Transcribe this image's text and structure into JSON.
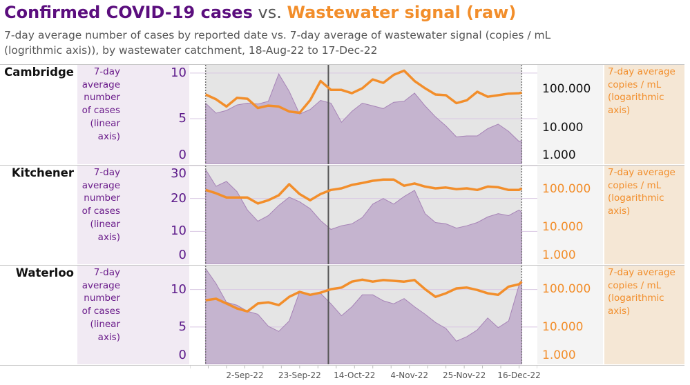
{
  "header": {
    "title_cases": "Confirmed COVID-19 cases",
    "title_vs": " vs. ",
    "title_wastewater": "Wastewater signal (raw)",
    "subtitle": "7-day average number of cases by reported date vs. 7-day average of wastewater signal (copies / mL (logrithmic axis)), by wastewater catchment, 18-Aug-22 to 17-Dec-22"
  },
  "colors": {
    "cases_fill": "#c5b4cf",
    "cases_line": "#a683b6",
    "wastewater": "#f28e2b",
    "cases_text": "#5b0e7e"
  },
  "left_axis_label": "7-day average number of cases (linear axis)",
  "right_axis_label": "7-day average copies / mL (logarithmic axis)",
  "x_axis": {
    "tick_labels": [
      "2-Sep-22",
      "23-Sep-22",
      "14-Oct-22",
      "4-Nov-22",
      "25-Nov-22",
      "16-Dec-22"
    ],
    "range": [
      "12-Aug-22",
      "23-Dec-22"
    ],
    "data_window": [
      "18-Aug-22",
      "17-Dec-22"
    ],
    "reference_line": "4-Oct-22"
  },
  "chart_data": [
    {
      "type": "area+line",
      "panel": "Cambridge",
      "x": [
        "18-Aug-22",
        "22-Aug-22",
        "26-Aug-22",
        "30-Aug-22",
        "3-Sep-22",
        "7-Sep-22",
        "11-Sep-22",
        "15-Sep-22",
        "19-Sep-22",
        "23-Sep-22",
        "27-Sep-22",
        "1-Oct-22",
        "5-Oct-22",
        "9-Oct-22",
        "13-Oct-22",
        "17-Oct-22",
        "21-Oct-22",
        "25-Oct-22",
        "29-Oct-22",
        "2-Nov-22",
        "6-Nov-22",
        "10-Nov-22",
        "14-Nov-22",
        "18-Nov-22",
        "22-Nov-22",
        "26-Nov-22",
        "30-Nov-22",
        "4-Dec-22",
        "8-Dec-22",
        "12-Dec-22",
        "16-Dec-22",
        "17-Dec-22"
      ],
      "cases": [
        6.7,
        5.6,
        5.9,
        6.5,
        6.7,
        6.6,
        6.9,
        9.9,
        8.0,
        5.5,
        6.0,
        7.0,
        6.7,
        4.6,
        5.8,
        6.7,
        6.4,
        6.1,
        6.8,
        6.9,
        7.8,
        6.4,
        5.2,
        4.2,
        3.0,
        3.1,
        3.1,
        3.9,
        4.4,
        3.6,
        2.5,
        2.6
      ],
      "wastewater": [
        72000,
        54000,
        35000,
        59000,
        56000,
        32000,
        37000,
        35000,
        26000,
        24000,
        51000,
        162000,
        95000,
        95000,
        78000,
        105000,
        178000,
        145000,
        234000,
        302000,
        162000,
        105000,
        72000,
        69000,
        43000,
        51000,
        85000,
        63000,
        69000,
        76000,
        78000,
        81000
      ],
      "cases_ylim": [
        0,
        10.9
      ],
      "cases_ticks": [
        0,
        5,
        10
      ],
      "cases_tick_labels": [
        "0",
        "5",
        "10"
      ],
      "ww_ylim": [
        1100,
        427000
      ],
      "ww_scale": "log",
      "ww_ticks": [
        1000,
        10000,
        100000
      ],
      "ww_tick_labels": [
        "1.000",
        "10.000",
        "100.000"
      ],
      "ww_tick_color": "#111111"
    },
    {
      "type": "area+line",
      "panel": "Kitchener",
      "x": [
        "18-Aug-22",
        "22-Aug-22",
        "26-Aug-22",
        "30-Aug-22",
        "3-Sep-22",
        "7-Sep-22",
        "11-Sep-22",
        "15-Sep-22",
        "19-Sep-22",
        "23-Sep-22",
        "27-Sep-22",
        "1-Oct-22",
        "5-Oct-22",
        "9-Oct-22",
        "13-Oct-22",
        "17-Oct-22",
        "21-Oct-22",
        "25-Oct-22",
        "29-Oct-22",
        "2-Nov-22",
        "6-Nov-22",
        "10-Nov-22",
        "14-Nov-22",
        "18-Nov-22",
        "22-Nov-22",
        "26-Nov-22",
        "30-Nov-22",
        "4-Dec-22",
        "8-Dec-22",
        "12-Dec-22",
        "16-Dec-22",
        "17-Dec-22"
      ],
      "cases": [
        28.8,
        23.7,
        25.2,
        22.1,
        16.5,
        13.1,
        14.8,
        17.9,
        20.4,
        19.0,
        16.9,
        13.3,
        10.6,
        11.7,
        12.3,
        14.2,
        18.3,
        20.0,
        18.3,
        20.6,
        22.5,
        15.4,
        12.7,
        12.3,
        11.0,
        11.7,
        12.7,
        14.4,
        15.4,
        14.8,
        16.5,
        15.8
      ],
      "wastewater": [
        95000,
        78000,
        60000,
        60000,
        60000,
        42000,
        51000,
        69000,
        135000,
        74000,
        51000,
        74000,
        95000,
        105000,
        129000,
        145000,
        166000,
        178000,
        178000,
        123000,
        141000,
        117000,
        105000,
        110000,
        100000,
        105000,
        95000,
        117000,
        112000,
        95000,
        95000,
        105000
      ],
      "cases_ylim": [
        0,
        30
      ],
      "cases_ticks": [
        0,
        10,
        20,
        30
      ],
      "cases_tick_labels": [
        "0",
        "10",
        "20",
        "30"
      ],
      "ww_ylim": [
        1050,
        417000
      ],
      "ww_scale": "log",
      "ww_ticks": [
        1000,
        10000,
        100000
      ],
      "ww_tick_labels": [
        "1.000",
        "10.000",
        "100.000"
      ],
      "ww_tick_color": "#f28e2b"
    },
    {
      "type": "area+line",
      "panel": "Waterloo",
      "x": [
        "18-Aug-22",
        "22-Aug-22",
        "26-Aug-22",
        "30-Aug-22",
        "3-Sep-22",
        "7-Sep-22",
        "11-Sep-22",
        "15-Sep-22",
        "19-Sep-22",
        "23-Sep-22",
        "27-Sep-22",
        "1-Oct-22",
        "5-Oct-22",
        "9-Oct-22",
        "13-Oct-22",
        "17-Oct-22",
        "21-Oct-22",
        "25-Oct-22",
        "29-Oct-22",
        "2-Nov-22",
        "6-Nov-22",
        "10-Nov-22",
        "14-Nov-22",
        "18-Nov-22",
        "22-Nov-22",
        "26-Nov-22",
        "30-Nov-22",
        "4-Dec-22",
        "8-Dec-22",
        "12-Dec-22",
        "16-Dec-22",
        "17-Dec-22"
      ],
      "cases": [
        12.8,
        10.8,
        8.3,
        7.9,
        7.1,
        6.7,
        5.1,
        4.4,
        5.8,
        9.7,
        9.3,
        9.5,
        8.1,
        6.5,
        7.7,
        9.3,
        9.3,
        8.5,
        8.1,
        8.8,
        7.7,
        6.7,
        5.6,
        4.8,
        3.1,
        3.7,
        4.6,
        6.2,
        4.9,
        5.8,
        10.6,
        11.3
      ],
      "wastewater": [
        51000,
        56000,
        42000,
        31000,
        26000,
        42000,
        45000,
        38000,
        63000,
        85000,
        71000,
        81000,
        100000,
        110000,
        158000,
        178000,
        158000,
        174000,
        166000,
        158000,
        174000,
        100000,
        63000,
        78000,
        105000,
        110000,
        95000,
        78000,
        71000,
        117000,
        135000,
        158000
      ],
      "cases_ylim": [
        0,
        13.2
      ],
      "cases_ticks": [
        0,
        5,
        10
      ],
      "cases_tick_labels": [
        "0",
        "5",
        "10"
      ],
      "ww_ylim": [
        1050,
        417000
      ],
      "ww_scale": "log",
      "ww_ticks": [
        1000,
        10000,
        100000
      ],
      "ww_tick_labels": [
        "1.000",
        "10.000",
        "100.000"
      ],
      "ww_tick_color": "#f28e2b"
    }
  ]
}
